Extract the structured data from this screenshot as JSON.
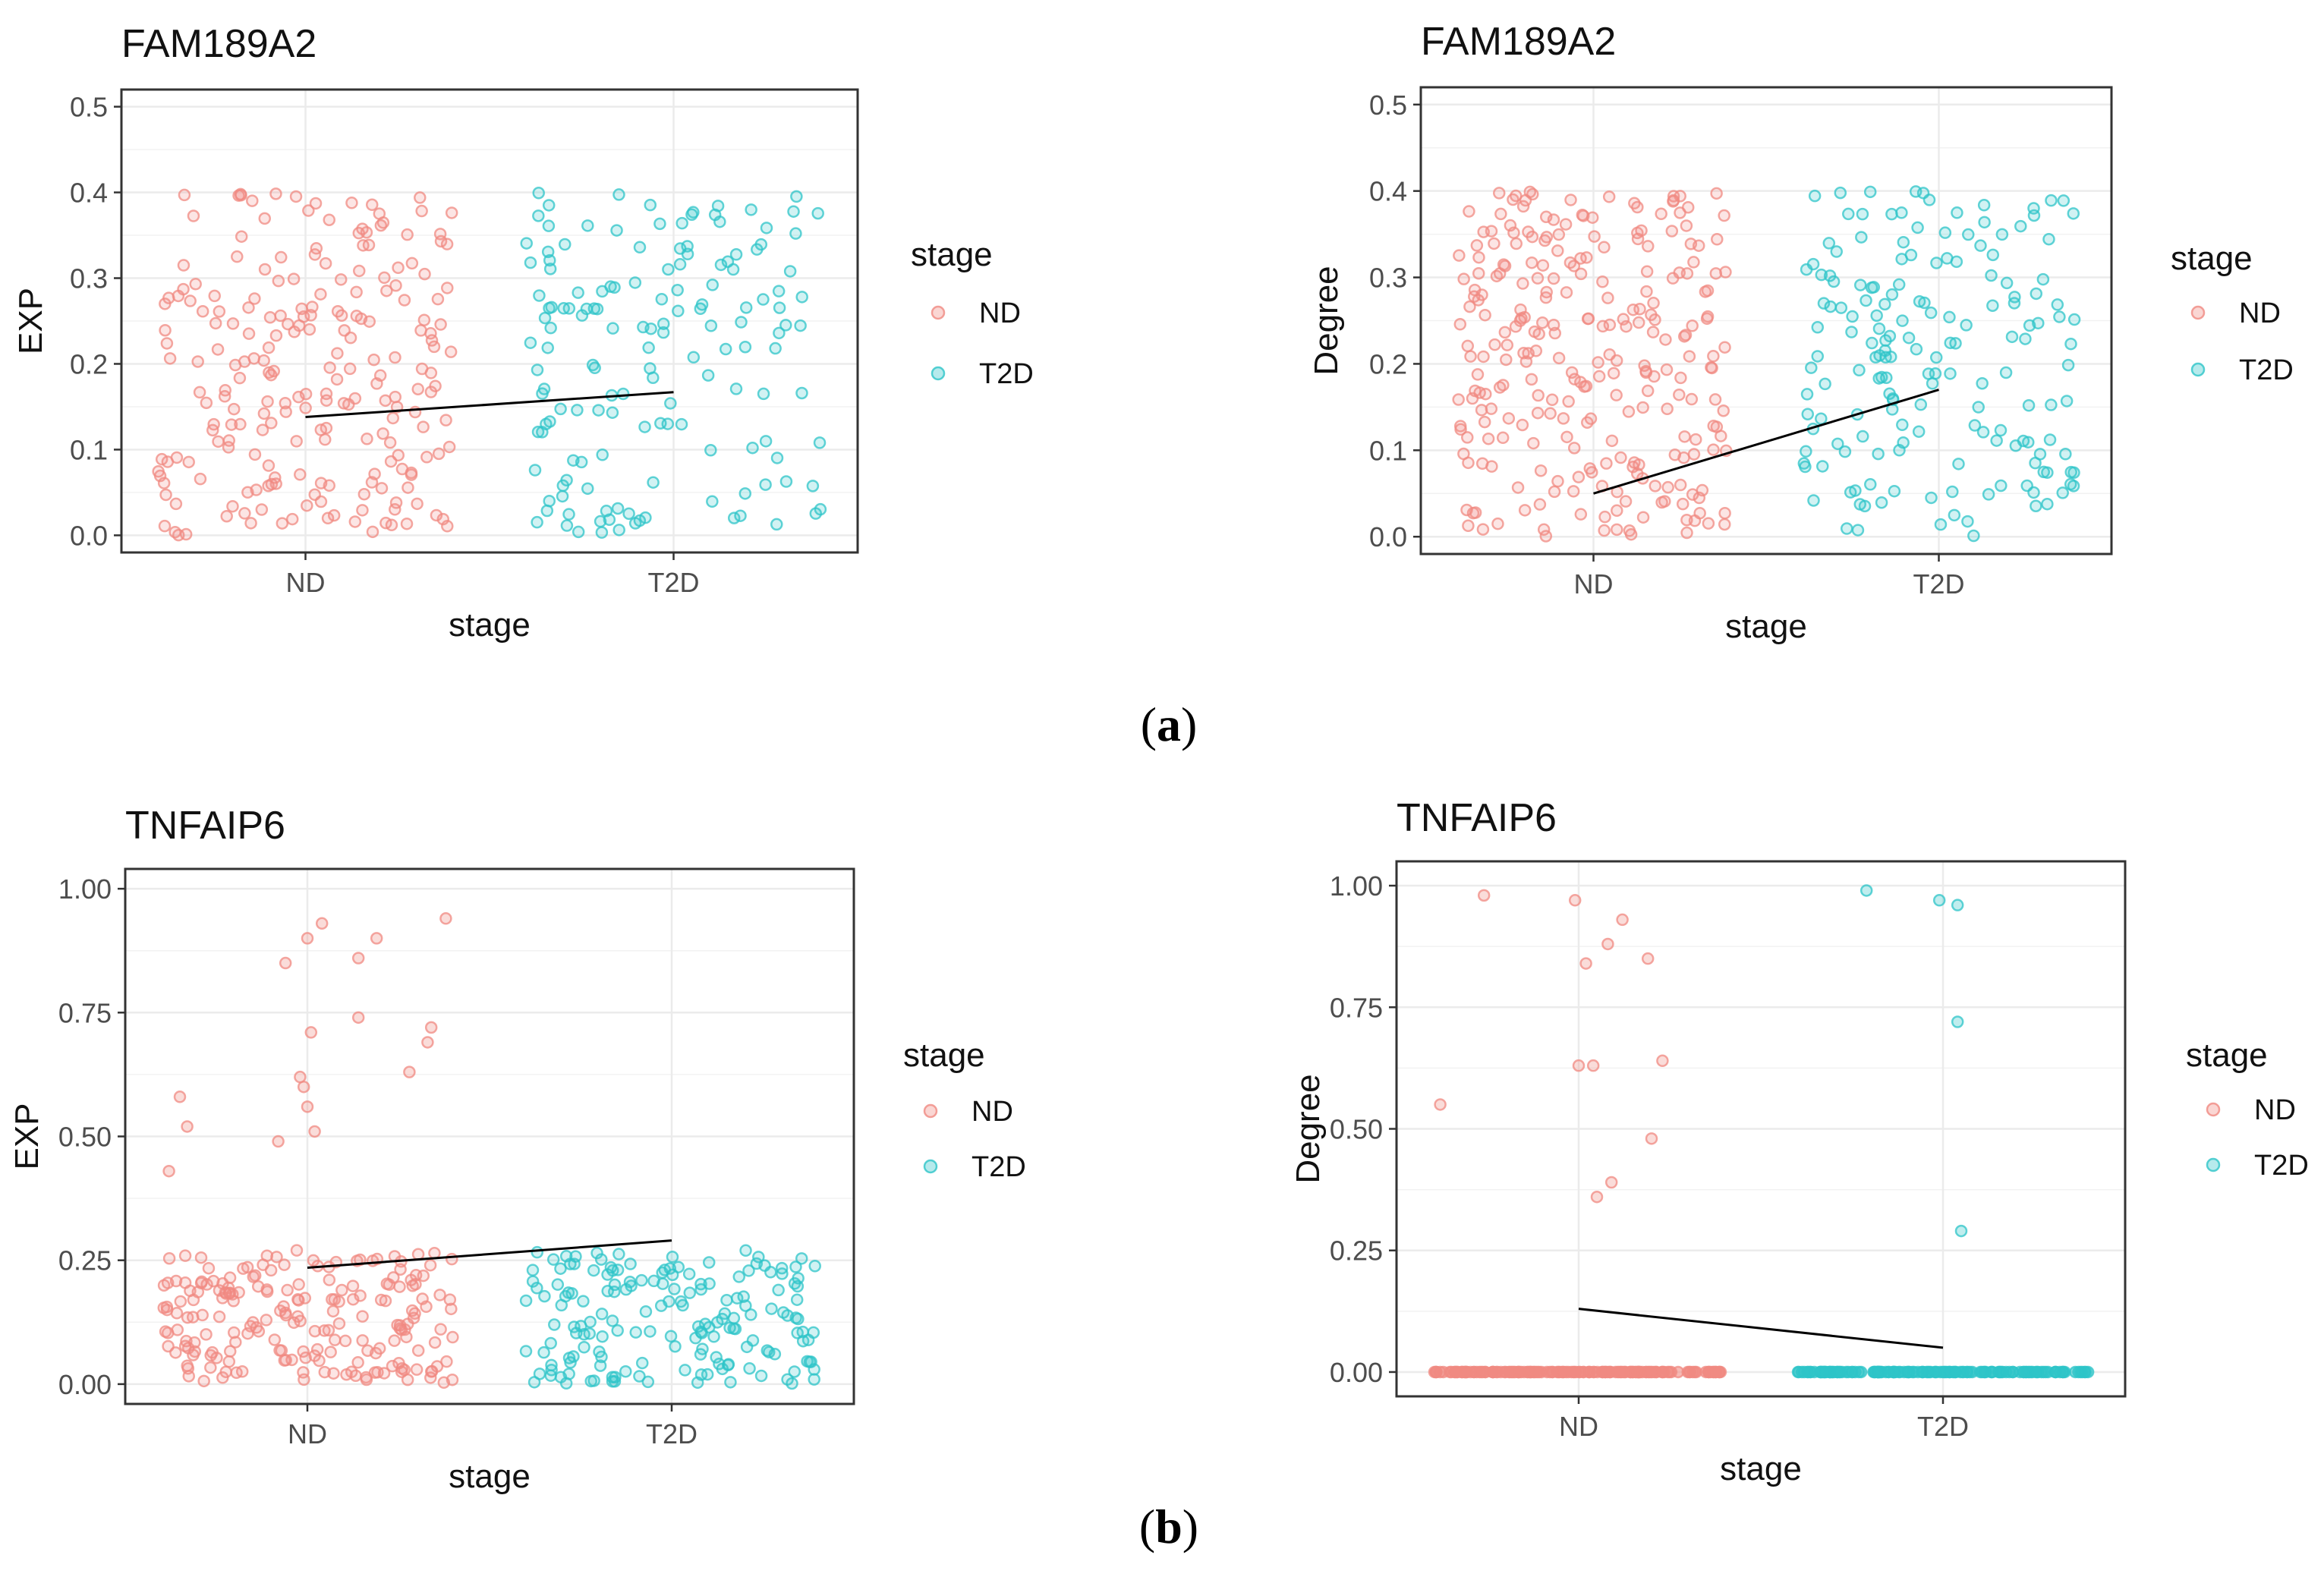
{
  "captions": {
    "a": "a",
    "b": "b"
  },
  "colors": {
    "ND": "#F08A82",
    "T2D": "#2EC4C8",
    "line": "#000000",
    "grid": "#EBEBEB",
    "frame": "#333333"
  },
  "chart_data": [
    {
      "type": "scatter",
      "title": "FAM189A2",
      "xlabel": "stage",
      "ylabel": "EXP",
      "categories": [
        "ND",
        "T2D"
      ],
      "ylim": [
        -0.02,
        0.52
      ],
      "yticks": [
        0.0,
        0.1,
        0.2,
        0.3,
        0.4,
        0.5
      ],
      "ytick_labels": [
        "0.0",
        "0.1",
        "0.2",
        "0.3",
        "0.4",
        "0.5"
      ],
      "legend": {
        "title": "stage",
        "entries": [
          "ND",
          "T2D"
        ]
      },
      "jitter": 0.4,
      "series": [
        {
          "name": "ND",
          "n": 220,
          "dist": "uniform",
          "min": 0.0,
          "max": 0.4,
          "seed": 11
        },
        {
          "name": "T2D",
          "n": 150,
          "dist": "uniform",
          "min": 0.0,
          "max": 0.4,
          "seed": 23
        }
      ],
      "trend": {
        "x": [
          "ND",
          "T2D"
        ],
        "y": [
          0.138,
          0.167
        ]
      }
    },
    {
      "type": "scatter",
      "title": "FAM189A2",
      "xlabel": "stage",
      "ylabel": "Degree",
      "categories": [
        "ND",
        "T2D"
      ],
      "ylim": [
        -0.02,
        0.52
      ],
      "yticks": [
        0.0,
        0.1,
        0.2,
        0.3,
        0.4,
        0.5
      ],
      "ytick_labels": [
        "0.0",
        "0.1",
        "0.2",
        "0.3",
        "0.4",
        "0.5"
      ],
      "legend": {
        "title": "stage",
        "entries": [
          "ND",
          "T2D"
        ]
      },
      "jitter": 0.4,
      "series": [
        {
          "name": "ND",
          "n": 260,
          "dist": "uniform",
          "min": 0.0,
          "max": 0.4,
          "seed": 37
        },
        {
          "name": "T2D",
          "n": 170,
          "dist": "uniform",
          "min": 0.0,
          "max": 0.4,
          "seed": 41
        }
      ],
      "trend": {
        "x": [
          "ND",
          "T2D"
        ],
        "y": [
          0.05,
          0.17
        ]
      }
    },
    {
      "type": "scatter",
      "title": "TNFAIP6",
      "xlabel": "stage",
      "ylabel": "EXP",
      "categories": [
        "ND",
        "T2D"
      ],
      "ylim": [
        -0.04,
        1.04
      ],
      "yticks": [
        0.0,
        0.25,
        0.5,
        0.75,
        1.0
      ],
      "ytick_labels": [
        "0.00",
        "0.25",
        "0.50",
        "0.75",
        "1.00"
      ],
      "legend": {
        "title": "stage",
        "entries": [
          "ND",
          "T2D"
        ]
      },
      "jitter": 0.4,
      "series": [
        {
          "name": "ND",
          "n": 200,
          "dist": "uniform",
          "min": 0.0,
          "max": 0.27,
          "seed": 53,
          "extra": [
            {
              "x": -0.35,
              "y": 0.58
            },
            {
              "x": -0.33,
              "y": 0.52
            },
            {
              "x": -0.38,
              "y": 0.43
            },
            {
              "x": -0.06,
              "y": 0.85
            },
            {
              "x": 0.0,
              "y": 0.9
            },
            {
              "x": 0.04,
              "y": 0.93
            },
            {
              "x": 0.14,
              "y": 0.86
            },
            {
              "x": 0.19,
              "y": 0.9
            },
            {
              "x": 0.38,
              "y": 0.94
            },
            {
              "x": 0.01,
              "y": 0.71
            },
            {
              "x": 0.14,
              "y": 0.74
            },
            {
              "x": 0.34,
              "y": 0.72
            },
            {
              "x": 0.33,
              "y": 0.69
            },
            {
              "x": 0.28,
              "y": 0.63
            },
            {
              "x": -0.02,
              "y": 0.62
            },
            {
              "x": -0.01,
              "y": 0.6
            },
            {
              "x": -0.08,
              "y": 0.49
            },
            {
              "x": 0.02,
              "y": 0.51
            },
            {
              "x": 0.0,
              "y": 0.56
            }
          ]
        },
        {
          "name": "T2D",
          "n": 170,
          "dist": "uniform",
          "min": 0.0,
          "max": 0.27,
          "seed": 67
        }
      ],
      "trend": {
        "x": [
          "ND",
          "T2D"
        ],
        "y": [
          0.235,
          0.29
        ]
      }
    },
    {
      "type": "scatter",
      "title": "TNFAIP6",
      "xlabel": "stage",
      "ylabel": "Degree",
      "categories": [
        "ND",
        "T2D"
      ],
      "ylim": [
        -0.05,
        1.05
      ],
      "yticks": [
        0.0,
        0.25,
        0.5,
        0.75,
        1.0
      ],
      "ytick_labels": [
        "0.00",
        "0.25",
        "0.50",
        "0.75",
        "1.00"
      ],
      "legend": {
        "title": "stage",
        "entries": [
          "ND",
          "T2D"
        ]
      },
      "jitter": 0.4,
      "series": [
        {
          "name": "ND",
          "n": 160,
          "dist": "zero",
          "seed": 71,
          "extra": [
            {
              "x": -0.26,
              "y": 0.98
            },
            {
              "x": -0.01,
              "y": 0.97
            },
            {
              "x": 0.12,
              "y": 0.93
            },
            {
              "x": 0.08,
              "y": 0.88
            },
            {
              "x": 0.02,
              "y": 0.84
            },
            {
              "x": 0.19,
              "y": 0.85
            },
            {
              "x": -0.38,
              "y": 0.55
            },
            {
              "x": 0.0,
              "y": 0.63
            },
            {
              "x": 0.04,
              "y": 0.63
            },
            {
              "x": 0.23,
              "y": 0.64
            },
            {
              "x": 0.2,
              "y": 0.48
            },
            {
              "x": 0.09,
              "y": 0.39
            },
            {
              "x": 0.05,
              "y": 0.36
            }
          ]
        },
        {
          "name": "T2D",
          "n": 150,
          "dist": "zero",
          "seed": 79,
          "extra": [
            {
              "x": -0.21,
              "y": 0.99
            },
            {
              "x": -0.01,
              "y": 0.97
            },
            {
              "x": 0.04,
              "y": 0.96
            },
            {
              "x": 0.04,
              "y": 0.72
            },
            {
              "x": 0.05,
              "y": 0.29
            }
          ]
        }
      ],
      "trend": {
        "x": [
          "ND",
          "T2D"
        ],
        "y": [
          0.13,
          0.05
        ]
      }
    }
  ]
}
